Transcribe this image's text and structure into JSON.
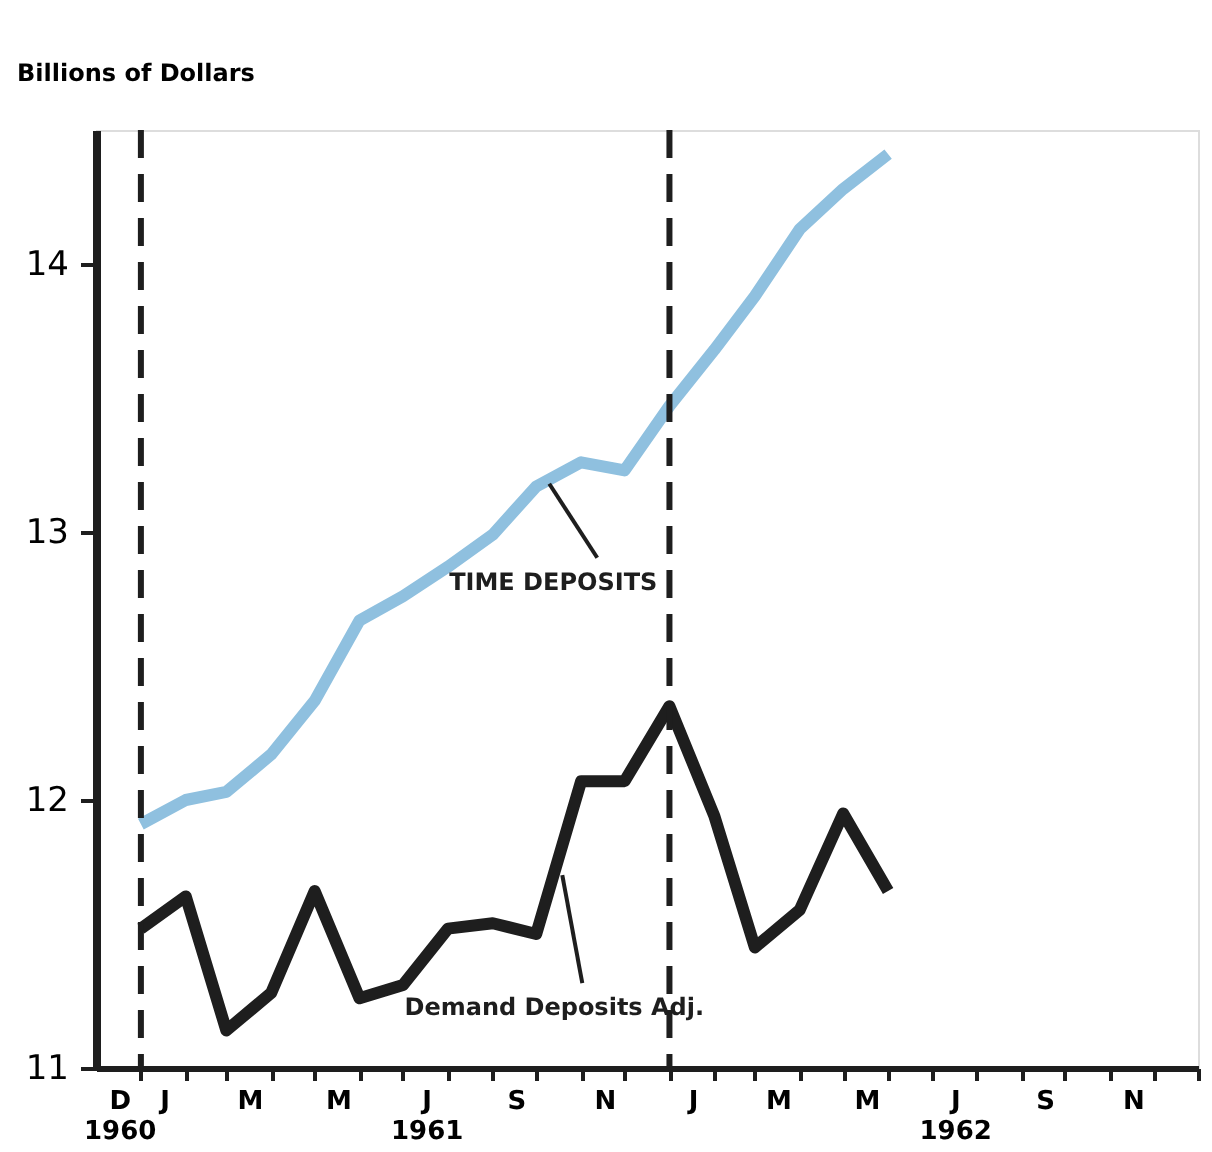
{
  "chart_data": {
    "type": "line",
    "ylabel": "Billions of Dollars",
    "x": [
      "1960-12-31",
      "1961-01-31",
      "1961-02-28",
      "1961-03-31",
      "1961-04-30",
      "1961-05-31",
      "1961-06-30",
      "1961-07-31",
      "1961-08-31",
      "1961-09-30",
      "1961-10-31",
      "1961-11-30",
      "1961-12-31",
      "1962-01-31",
      "1962-02-28",
      "1962-03-31",
      "1962-04-30",
      "1962-05-31"
    ],
    "series": [
      {
        "color": "#8fc0df",
        "values": [
          11.91,
          12.0,
          12.03,
          12.17,
          12.37,
          12.67,
          12.76,
          12.87,
          12.99,
          13.17,
          13.26,
          13.23,
          13.47,
          13.68,
          13.88,
          14.13,
          14.28,
          14.41
        ]
      },
      {
        "color": "#1e1e1e",
        "values": [
          11.52,
          11.64,
          11.14,
          11.28,
          11.66,
          11.26,
          11.31,
          11.52,
          11.54,
          11.5,
          12.07,
          12.07,
          12.35,
          11.94,
          11.45,
          11.59,
          11.95,
          11.66
        ]
      }
    ],
    "xlim": [
      "1960-11-30",
      "1962-12-31"
    ],
    "xticks": [
      {
        "value": "1960-12-16",
        "label": "D\n1960"
      },
      {
        "value": "1960-12-31",
        "label": null
      },
      {
        "value": "1961-01-16",
        "label": "J"
      },
      {
        "value": "1961-01-31",
        "label": null
      },
      {
        "value": "1961-02-28",
        "label": null
      },
      {
        "value": "1961-03-16",
        "label": "M"
      },
      {
        "value": "1961-03-31",
        "label": null
      },
      {
        "value": "1961-04-30",
        "label": null
      },
      {
        "value": "1961-05-16",
        "label": "M"
      },
      {
        "value": "1961-05-31",
        "label": null
      },
      {
        "value": "1961-06-30",
        "label": null
      },
      {
        "value": "1961-07-16",
        "label": "J\n1961"
      },
      {
        "value": "1961-07-31",
        "label": null
      },
      {
        "value": "1961-08-31",
        "label": null
      },
      {
        "value": "1961-09-16",
        "label": "S"
      },
      {
        "value": "1961-09-30",
        "label": null
      },
      {
        "value": "1961-10-31",
        "label": null
      },
      {
        "value": "1961-11-16",
        "label": "N"
      },
      {
        "value": "1961-11-30",
        "label": null
      },
      {
        "value": "1961-12-31",
        "label": null
      },
      {
        "value": "1962-01-16",
        "label": "J"
      },
      {
        "value": "1962-01-31",
        "label": null
      },
      {
        "value": "1962-02-28",
        "label": null
      },
      {
        "value": "1962-03-16",
        "label": "M"
      },
      {
        "value": "1962-03-31",
        "label": null
      },
      {
        "value": "1962-04-30",
        "label": null
      },
      {
        "value": "1962-05-16",
        "label": "M"
      },
      {
        "value": "1962-05-31",
        "label": null
      },
      {
        "value": "1962-06-30",
        "label": null
      },
      {
        "value": "1962-07-16",
        "label": "J\n1962"
      },
      {
        "value": "1962-07-31",
        "label": null
      },
      {
        "value": "1962-08-31",
        "label": null
      },
      {
        "value": "1962-09-16",
        "label": "S"
      },
      {
        "value": "1962-09-30",
        "label": null
      },
      {
        "value": "1962-10-31",
        "label": null
      },
      {
        "value": "1962-11-16",
        "label": "N"
      },
      {
        "value": "1962-11-30",
        "label": null
      },
      {
        "value": "1962-12-31",
        "label": null
      }
    ],
    "ylim": [
      11,
      14.5
    ],
    "yticks": [
      11,
      12,
      13,
      14
    ],
    "grid": false,
    "line_style": "solid",
    "marker": "none",
    "ref_lines": [
      {
        "axis": "x",
        "value": "1960-12-31",
        "line_style": "dashed",
        "color": "#1e1e1e"
      },
      {
        "axis": "x",
        "value": "1961-12-31",
        "line_style": "dashed",
        "color": "#1e1e1e"
      }
    ],
    "annotations": [
      {
        "text": "TIME DEPOSITS",
        "x": "1961-10-09",
        "y": 13.18
      },
      {
        "text": "Demand Deposits Adj.",
        "x": "1961-10-18",
        "y": 11.72
      }
    ]
  }
}
